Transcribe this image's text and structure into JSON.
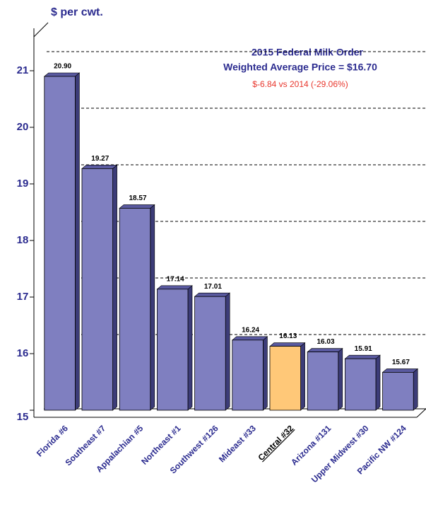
{
  "chart_data": {
    "type": "bar",
    "title": "2015 Federal Milk Order",
    "subtitle": "Weighted Average Price = $16.70",
    "annotation": "$-6.84 vs 2014 (-29.06%)",
    "y_label": "$ per cwt.",
    "categories": [
      "Florida #6",
      "Southeast #7",
      "Appalachian #5",
      "Northeast #1",
      "Southwest #126",
      "Mideast #33",
      "Central #32",
      "Arizona #131",
      "Upper Midwest #30",
      "Pacific NW #124"
    ],
    "values": [
      20.9,
      19.27,
      18.57,
      17.14,
      17.01,
      16.24,
      16.13,
      16.03,
      15.91,
      15.67
    ],
    "value_labels": [
      "20.90",
      "19.27",
      "18.57",
      "17.14",
      "17.01",
      "16.24",
      "16.13",
      "16.03",
      "15.91",
      "15.67"
    ],
    "colors": [
      "#7f7fc0",
      "#7f7fc0",
      "#7f7fc0",
      "#7f7fc0",
      "#7f7fc0",
      "#7f7fc0",
      "#ffc878",
      "#7f7fc0",
      "#7f7fc0",
      "#7f7fc0"
    ],
    "ylim": [
      15,
      21.75
    ],
    "yticks": [
      15,
      16,
      17,
      18,
      19,
      20,
      21
    ],
    "grid": true
  }
}
